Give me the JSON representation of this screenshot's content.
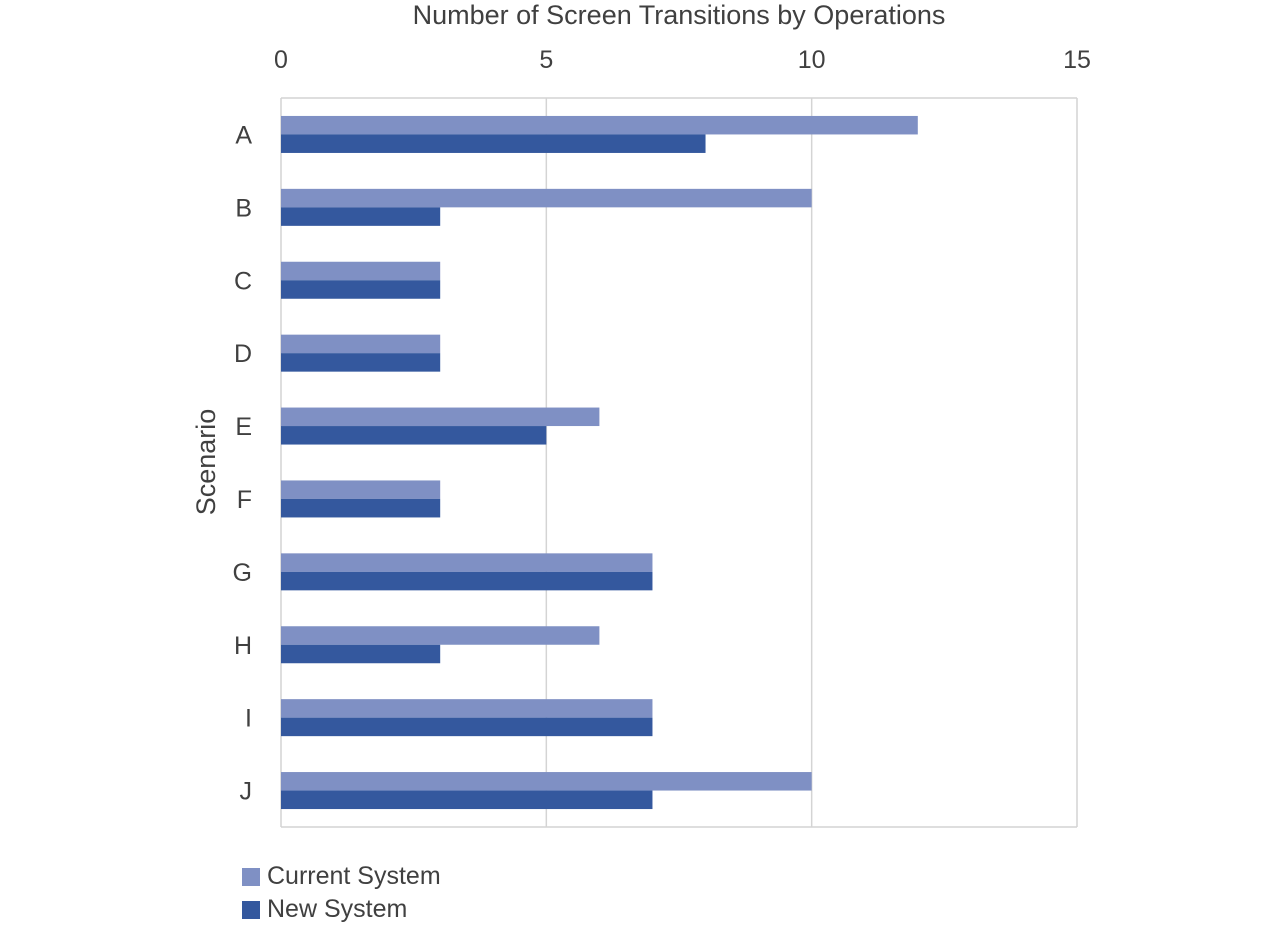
{
  "chart_data": {
    "type": "bar",
    "orientation": "horizontal",
    "title": "",
    "xlabel": "Number of Screen Transitions by Operations",
    "ylabel": "Scenario",
    "xlim": [
      0,
      15
    ],
    "x_ticks": [
      0,
      5,
      10,
      15
    ],
    "x_axis_position": "top",
    "grid": true,
    "legend_position": "bottom-left",
    "categories": [
      "A",
      "B",
      "C",
      "D",
      "E",
      "F",
      "G",
      "H",
      "I",
      "J"
    ],
    "series": [
      {
        "name": "Current System",
        "color": "#7f90c4",
        "values": [
          12,
          10,
          3,
          3,
          6,
          3,
          7,
          6,
          7,
          10
        ]
      },
      {
        "name": "New System",
        "color": "#34589e",
        "values": [
          8,
          3,
          3,
          3,
          5,
          3,
          7,
          3,
          7,
          7
        ]
      }
    ]
  }
}
